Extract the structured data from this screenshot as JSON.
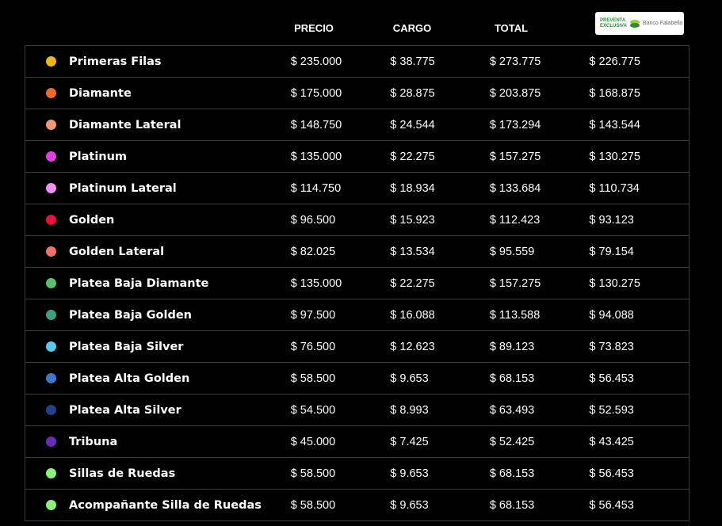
{
  "header": {
    "precio": "PRECIO",
    "cargo": "CARGO",
    "total": "TOTAL",
    "preventa_logo": {
      "line1": "PREVENTA",
      "line2": "EXCLUSIVA",
      "brand": "Banco Falabella"
    }
  },
  "rows": [
    {
      "name": "Primeras Filas",
      "color": "#f0b41c",
      "precio": "$ 235.000",
      "cargo": "$ 38.775",
      "total": "$ 273.775",
      "preventa": "$ 226.775"
    },
    {
      "name": "Diamante",
      "color": "#ec6a2c",
      "precio": "$ 175.000",
      "cargo": "$ 28.875",
      "total": "$ 203.875",
      "preventa": "$ 168.875"
    },
    {
      "name": "Diamante Lateral",
      "color": "#f0967a",
      "precio": "$ 148.750",
      "cargo": "$ 24.544",
      "total": "$ 173.294",
      "preventa": "$ 143.544"
    },
    {
      "name": "Platinum",
      "color": "#e040e0",
      "precio": "$ 135.000",
      "cargo": "$ 22.275",
      "total": "$ 157.275",
      "preventa": "$ 130.275"
    },
    {
      "name": "Platinum Lateral",
      "color": "#f090f0",
      "precio": "$ 114.750",
      "cargo": "$ 18.934",
      "total": "$ 133.684",
      "preventa": "$ 110.734"
    },
    {
      "name": "Golden",
      "color": "#e8103c",
      "precio": "$ 96.500",
      "cargo": "$ 15.923",
      "total": "$ 112.423",
      "preventa": "$ 93.123"
    },
    {
      "name": "Golden Lateral",
      "color": "#ee7070",
      "precio": "$ 82.025",
      "cargo": "$ 13.534",
      "total": "$ 95.559",
      "preventa": "$ 79.154"
    },
    {
      "name": "Platea Baja Diamante",
      "color": "#5cbf70",
      "precio": "$ 135.000",
      "cargo": "$ 22.275",
      "total": "$ 157.275",
      "preventa": "$ 130.275"
    },
    {
      "name": "Platea Baja Golden",
      "color": "#3fa07a",
      "precio": "$ 97.500",
      "cargo": "$ 16.088",
      "total": "$ 113.588",
      "preventa": "$ 94.088"
    },
    {
      "name": "Platea Baja Silver",
      "color": "#5cc8ec",
      "precio": "$ 76.500",
      "cargo": "$ 12.623",
      "total": "$ 89.123",
      "preventa": "$ 73.823"
    },
    {
      "name": "Platea Alta Golden",
      "color": "#3f78c8",
      "precio": "$ 58.500",
      "cargo": "$ 9.653",
      "total": "$ 68.153",
      "preventa": "$ 56.453"
    },
    {
      "name": "Platea Alta Silver",
      "color": "#263e8a",
      "precio": "$ 54.500",
      "cargo": "$ 8.993",
      "total": "$ 63.493",
      "preventa": "$ 52.593"
    },
    {
      "name": "Tribuna",
      "color": "#6a2cb0",
      "precio": "$ 45.000",
      "cargo": "$ 7.425",
      "total": "$ 52.425",
      "preventa": "$ 43.425"
    },
    {
      "name": "Sillas de Ruedas",
      "color": "#8ef07a",
      "precio": "$ 58.500",
      "cargo": "$ 9.653",
      "total": "$ 68.153",
      "preventa": "$ 56.453"
    },
    {
      "name": "Acompañante Silla de Ruedas",
      "color": "#8ef07a",
      "precio": "$ 58.500",
      "cargo": "$ 9.653",
      "total": "$ 68.153",
      "preventa": "$ 56.453"
    }
  ]
}
